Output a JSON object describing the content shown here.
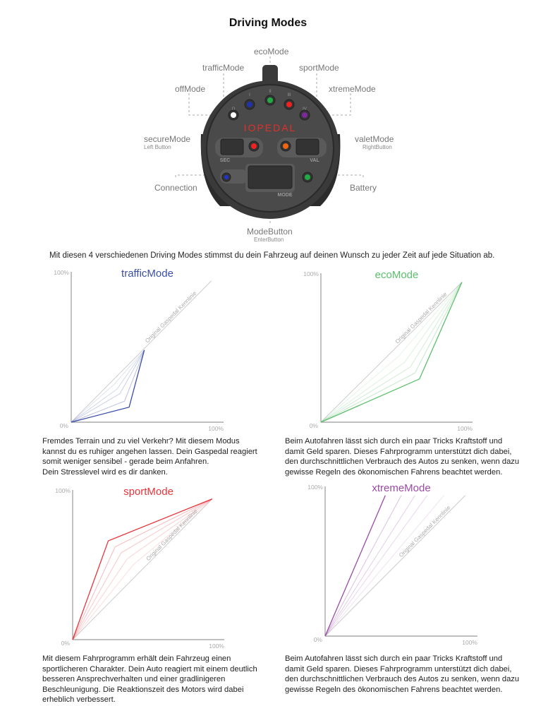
{
  "title": "Driving Modes",
  "device": {
    "brand": "IOPEDAL",
    "labels": {
      "ecoMode": "ecoMode",
      "trafficMode": "trafficMode",
      "sportMode": "sportMode",
      "offMode": "offMode",
      "xtremeMode": "xtremeMode",
      "secureMode": "secureMode",
      "secureSub": "Left Button",
      "valetMode": "valetMode",
      "valetSub": "RightButton",
      "connection": "Connection",
      "battery": "Battery",
      "modeButton": "ModeButton",
      "modeSub": "EnterButton"
    },
    "button_labels": {
      "sec": "SEC",
      "val": "VAL",
      "mode": "MODE"
    },
    "led_labels": {
      "off": "O",
      "traffic": "I",
      "eco": "II",
      "sport": "III",
      "xtreme": "IV"
    },
    "led_colors": {
      "off": "#ffffff",
      "traffic": "#2233aa",
      "eco": "#22aa44",
      "sport": "#ee2222",
      "xtreme": "#7a2a9a",
      "sec": "#ee2222",
      "val": "#ee6611",
      "conn": "#2233cc",
      "battery": "#22aa44"
    }
  },
  "intro": "Mit diesen 4 verschiedenen Driving Modes stimmst du dein Fahrzeug auf deinen Wunsch zu jeder Zeit auf jede Situation ab.",
  "chart_data": [
    {
      "type": "line",
      "title": "trafficMode",
      "color": "#3b4ea8",
      "xlim": [
        0,
        100
      ],
      "ylim": [
        0,
        100
      ],
      "tick_labels": {
        "origin": "0%",
        "x_max": "100%",
        "y_max": "100%"
      },
      "reference": {
        "label": "Original Gaspedal Kennlinie",
        "points": [
          [
            0,
            0
          ],
          [
            92,
            94
          ]
        ]
      },
      "series": [
        {
          "emphasis": true,
          "points": [
            [
              0,
              0
            ],
            [
              38,
              10
            ],
            [
              48,
              48
            ]
          ]
        },
        {
          "points": [
            [
              0,
              0
            ],
            [
              35,
              14
            ],
            [
              48,
              48
            ]
          ]
        },
        {
          "points": [
            [
              0,
              0
            ],
            [
              32,
              19
            ],
            [
              48,
              48
            ]
          ]
        },
        {
          "points": [
            [
              0,
              0
            ],
            [
              30,
              22
            ],
            [
              48,
              48
            ]
          ]
        },
        {
          "points": [
            [
              0,
              0
            ],
            [
              28,
              25
            ],
            [
              48,
              48
            ]
          ]
        }
      ],
      "text": [
        "Fremdes Terrain und zu viel Verkehr? Mit diesem Modus",
        "kannst du es ruhiger angehen lassen. Dein Gaspedal reagiert",
        "somit weniger sensibel - gerade beim Anfahren.",
        "Dein Stresslevel wird es dir danken."
      ]
    },
    {
      "type": "line",
      "title": "ecoMode",
      "color": "#5cc06c",
      "xlim": [
        0,
        100
      ],
      "ylim": [
        0,
        100
      ],
      "tick_labels": {
        "origin": "0%",
        "x_max": "100%",
        "y_max": "100%"
      },
      "reference": {
        "label": "Original Gaspedal Kennlinie",
        "points": [
          [
            0,
            0
          ],
          [
            93,
            94
          ]
        ]
      },
      "series": [
        {
          "emphasis": true,
          "points": [
            [
              0,
              0
            ],
            [
              65,
              29
            ],
            [
              93,
              94
            ]
          ]
        },
        {
          "points": [
            [
              0,
              0
            ],
            [
              62,
              33
            ],
            [
              93,
              94
            ]
          ]
        },
        {
          "points": [
            [
              0,
              0
            ],
            [
              59,
              37
            ],
            [
              93,
              94
            ]
          ]
        },
        {
          "points": [
            [
              0,
              0
            ],
            [
              55,
              40
            ],
            [
              93,
              94
            ]
          ]
        },
        {
          "points": [
            [
              0,
              0
            ],
            [
              51,
              44
            ],
            [
              93,
              94
            ]
          ]
        }
      ],
      "text": [
        "Beim Autofahren lässt sich durch ein paar Tricks Kraftstoff und",
        "damit Geld sparen. Dieses Fahrprogramm unterstützt dich dabei,",
        "den durchschnittlichen Verbrauch des Autos zu senken,  wenn dazu",
        "gewisse Regeln des ökonomischen Fahrens beachtet werden."
      ]
    },
    {
      "type": "line",
      "title": "sportMode",
      "color": "#e8333a",
      "xlim": [
        0,
        100
      ],
      "ylim": [
        0,
        100
      ],
      "tick_labels": {
        "origin": "0%",
        "x_max": "100%",
        "y_max": "100%"
      },
      "reference": {
        "label": "Original Gaspedal Kennlinie",
        "points": [
          [
            0,
            0
          ],
          [
            92,
            94
          ]
        ]
      },
      "series": [
        {
          "emphasis": true,
          "points": [
            [
              0,
              0
            ],
            [
              23.5,
              66
            ],
            [
              92,
              94
            ]
          ]
        },
        {
          "points": [
            [
              0,
              0
            ],
            [
              28,
              62
            ],
            [
              92,
              94
            ]
          ]
        },
        {
          "points": [
            [
              0,
              0
            ],
            [
              32,
              58
            ],
            [
              92,
              94
            ]
          ]
        },
        {
          "points": [
            [
              0,
              0
            ],
            [
              36,
              54
            ],
            [
              92,
              94
            ]
          ]
        },
        {
          "points": [
            [
              0,
              0
            ],
            [
              40,
              50
            ],
            [
              92,
              94
            ]
          ]
        }
      ],
      "text": [
        "Mit diesem Fahrprogramm erhält dein Fahrzeug einen",
        "sportlicheren Charakter. Dein Auto reagiert mit einem deutlich",
        "besseren Ansprechverhalten und einer gradlinigeren",
        "Beschleunigung. Die Reaktionszeit des Motors wird dabei",
        "erheblich verbessert."
      ]
    },
    {
      "type": "line",
      "title": "xtremeMode",
      "color": "#9b4aa6",
      "xlim": [
        0,
        100
      ],
      "ylim": [
        0,
        100
      ],
      "tick_labels": {
        "origin": "0%",
        "x_max": "100%",
        "y_max": "100%"
      },
      "reference": {
        "label": "Original Gaspedal Kennlinie",
        "points": [
          [
            0,
            0
          ],
          [
            92,
            94
          ]
        ]
      },
      "series": [
        {
          "emphasis": true,
          "points": [
            [
              0,
              0
            ],
            [
              39.5,
              94
            ]
          ]
        },
        {
          "points": [
            [
              0,
              0
            ],
            [
              50,
              94
            ]
          ]
        },
        {
          "points": [
            [
              0,
              0
            ],
            [
              59,
              94
            ]
          ]
        },
        {
          "points": [
            [
              0,
              0
            ],
            [
              67,
              94
            ]
          ]
        },
        {
          "points": [
            [
              0,
              0
            ],
            [
              78,
              94
            ]
          ]
        }
      ],
      "text": [
        "Beim Autofahren lässt sich durch ein paar Tricks Kraftstoff und",
        "damit Geld sparen. Dieses Fahrprogramm unterstützt dich dabei,",
        "den durchschnittlichen Verbrauch des Autos zu senken,  wenn dazu",
        "gewisse Regeln des ökonomischen Fahrens beachtet werden."
      ]
    }
  ]
}
